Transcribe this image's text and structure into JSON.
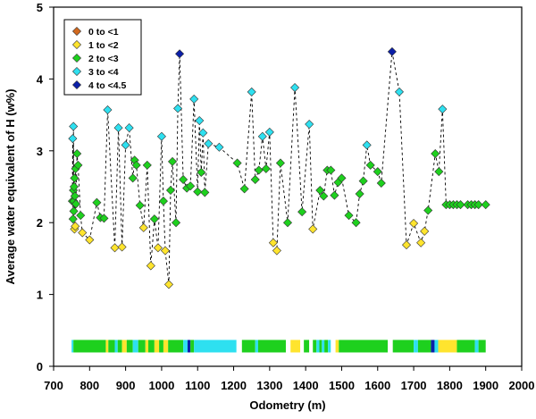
{
  "chart_data": {
    "type": "scatter",
    "xlabel": "Odometry (m)",
    "ylabel": "Average water equivalent of H (w%)",
    "xlim": [
      700,
      2000
    ],
    "ylim": [
      0,
      5
    ],
    "xticks": [
      "700",
      "800",
      "900",
      "1000",
      "1100",
      "1200",
      "1300",
      "1400",
      "1500",
      "1600",
      "1700",
      "1800",
      "1900",
      "2000"
    ],
    "yticks": [
      "0",
      "1",
      "2",
      "3",
      "4",
      "5"
    ],
    "grid": false,
    "legend_position": "top-left",
    "line_style": "dashed black connecting points",
    "legend": [
      {
        "label": "0 to <1",
        "color": "#d2691e"
      },
      {
        "label": "1 to <2",
        "color": "#ffe42e"
      },
      {
        "label": "2 to <3",
        "color": "#1ed01e"
      },
      {
        "label": "3 to <4",
        "color": "#2ee0f0"
      },
      {
        "label": "4 to <4.5",
        "color": "#0b1fa8"
      }
    ],
    "series": [
      {
        "x": [
          752,
          753,
          754,
          755,
          755,
          756,
          756,
          757,
          758,
          758,
          759,
          760,
          761,
          762,
          765,
          768,
          775,
          780,
          800,
          820,
          830,
          840,
          850,
          870,
          880,
          890,
          900,
          910,
          920,
          925,
          930,
          940,
          950,
          960,
          970,
          980,
          990,
          1000,
          1005,
          1010,
          1020,
          1025,
          1030,
          1040,
          1045,
          1050,
          1060,
          1070,
          1080,
          1090,
          1100,
          1105,
          1110,
          1115,
          1120,
          1130,
          1160,
          1210,
          1230,
          1250,
          1260,
          1270,
          1280,
          1290,
          1300,
          1310,
          1320,
          1330,
          1350,
          1370,
          1390,
          1410,
          1420,
          1440,
          1450,
          1460,
          1470,
          1480,
          1490,
          1500,
          1520,
          1540,
          1550,
          1560,
          1570,
          1580,
          1600,
          1610,
          1640,
          1660,
          1680,
          1700,
          1720,
          1730,
          1740,
          1760,
          1770,
          1780,
          1790,
          1800,
          1810,
          1820,
          1830,
          1850,
          1860,
          1870,
          1880,
          1900
        ],
        "y": [
          2.3,
          3.17,
          2.05,
          2.45,
          3.34,
          2.3,
          2.16,
          2.5,
          1.91,
          2.62,
          2.37,
          1.95,
          2.75,
          2.26,
          2.96,
          2.8,
          2.1,
          1.86,
          1.76,
          2.28,
          2.07,
          2.06,
          3.57,
          1.65,
          3.32,
          1.66,
          3.08,
          3.32,
          2.62,
          2.87,
          2.8,
          2.24,
          1.93,
          2.8,
          1.4,
          2.05,
          1.65,
          3.2,
          2.3,
          1.61,
          1.14,
          2.45,
          2.85,
          2.0,
          3.59,
          4.35,
          2.6,
          2.48,
          2.51,
          3.72,
          2.43,
          3.42,
          2.7,
          3.25,
          2.42,
          3.1,
          3.05,
          2.83,
          2.47,
          3.82,
          2.6,
          2.73,
          3.2,
          2.75,
          3.26,
          1.72,
          1.61,
          2.83,
          2.0,
          3.88,
          2.15,
          3.37,
          1.91,
          2.45,
          2.37,
          2.73,
          2.73,
          2.38,
          2.56,
          2.62,
          2.1,
          2.0,
          2.4,
          2.58,
          3.08,
          2.8,
          2.71,
          2.55,
          4.38,
          3.82,
          1.69,
          1.99,
          1.72,
          1.88,
          2.17,
          2.96,
          2.71,
          3.58,
          2.25,
          2.25,
          2.25,
          2.25,
          2.25,
          2.25,
          2.25,
          2.25,
          2.25,
          2.25
        ],
        "colors": []
      }
    ],
    "bottom_strip": {
      "y": 0.28,
      "segments": [
        {
          "start": 750,
          "end": 755,
          "color": "#2ee0f0"
        },
        {
          "start": 755,
          "end": 845,
          "color": "#1ed01e"
        },
        {
          "start": 845,
          "end": 852,
          "color": "#ffe42e"
        },
        {
          "start": 852,
          "end": 870,
          "color": "#1ed01e"
        },
        {
          "start": 870,
          "end": 878,
          "color": "#2ee0f0"
        },
        {
          "start": 878,
          "end": 890,
          "color": "#1ed01e"
        },
        {
          "start": 890,
          "end": 903,
          "color": "#ffe42e"
        },
        {
          "start": 903,
          "end": 920,
          "color": "#1ed01e"
        },
        {
          "start": 920,
          "end": 935,
          "color": "#2ee0f0"
        },
        {
          "start": 935,
          "end": 955,
          "color": "#1ed01e"
        },
        {
          "start": 955,
          "end": 963,
          "color": "#ffe42e"
        },
        {
          "start": 963,
          "end": 980,
          "color": "#1ed01e"
        },
        {
          "start": 980,
          "end": 993,
          "color": "#ffe42e"
        },
        {
          "start": 993,
          "end": 1005,
          "color": "#1ed01e"
        },
        {
          "start": 1005,
          "end": 1018,
          "color": "#ffe42e"
        },
        {
          "start": 1018,
          "end": 1060,
          "color": "#1ed01e"
        },
        {
          "start": 1060,
          "end": 1072,
          "color": "#2ee0f0"
        },
        {
          "start": 1072,
          "end": 1080,
          "color": "#0b1fa8"
        },
        {
          "start": 1080,
          "end": 1090,
          "color": "#1ed01e"
        },
        {
          "start": 1090,
          "end": 1208,
          "color": "#2ee0f0"
        },
        {
          "start": 1208,
          "end": 1223,
          "color": "#ffffff"
        },
        {
          "start": 1223,
          "end": 1260,
          "color": "#1ed01e"
        },
        {
          "start": 1260,
          "end": 1268,
          "color": "#2ee0f0"
        },
        {
          "start": 1268,
          "end": 1345,
          "color": "#1ed01e"
        },
        {
          "start": 1345,
          "end": 1358,
          "color": "#ffffff"
        },
        {
          "start": 1358,
          "end": 1385,
          "color": "#ffe42e"
        },
        {
          "start": 1385,
          "end": 1395,
          "color": "#ffffff"
        },
        {
          "start": 1395,
          "end": 1410,
          "color": "#1ed01e"
        },
        {
          "start": 1410,
          "end": 1420,
          "color": "#ffffff"
        },
        {
          "start": 1420,
          "end": 1430,
          "color": "#1ed01e"
        },
        {
          "start": 1430,
          "end": 1438,
          "color": "#2ee0f0"
        },
        {
          "start": 1438,
          "end": 1445,
          "color": "#1ed01e"
        },
        {
          "start": 1445,
          "end": 1452,
          "color": "#2ee0f0"
        },
        {
          "start": 1452,
          "end": 1462,
          "color": "#1ed01e"
        },
        {
          "start": 1462,
          "end": 1470,
          "color": "#2ee0f0"
        },
        {
          "start": 1470,
          "end": 1483,
          "color": "#ffffff"
        },
        {
          "start": 1483,
          "end": 1492,
          "color": "#ffe42e"
        },
        {
          "start": 1492,
          "end": 1628,
          "color": "#1ed01e"
        },
        {
          "start": 1628,
          "end": 1642,
          "color": "#ffffff"
        },
        {
          "start": 1642,
          "end": 1700,
          "color": "#1ed01e"
        },
        {
          "start": 1700,
          "end": 1712,
          "color": "#2ee0f0"
        },
        {
          "start": 1712,
          "end": 1748,
          "color": "#1ed01e"
        },
        {
          "start": 1748,
          "end": 1758,
          "color": "#0b1fa8"
        },
        {
          "start": 1758,
          "end": 1768,
          "color": "#2ee0f0"
        },
        {
          "start": 1768,
          "end": 1820,
          "color": "#ffe42e"
        },
        {
          "start": 1820,
          "end": 1870,
          "color": "#1ed01e"
        },
        {
          "start": 1870,
          "end": 1880,
          "color": "#2ee0f0"
        },
        {
          "start": 1880,
          "end": 1900,
          "color": "#1ed01e"
        }
      ]
    }
  }
}
